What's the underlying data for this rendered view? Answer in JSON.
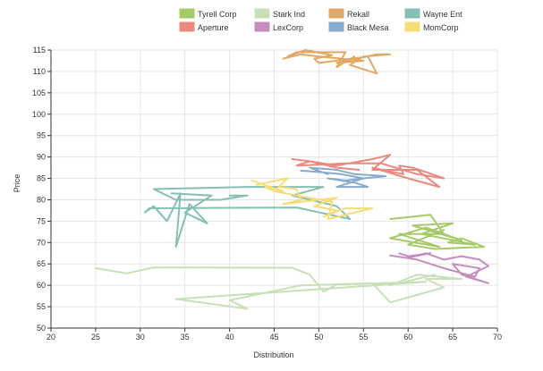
{
  "chart_data": {
    "type": "line",
    "title": "",
    "xlabel": "Distribution",
    "ylabel": "Price",
    "xlim": [
      20,
      70
    ],
    "ylim": [
      50,
      115
    ],
    "xticks": [
      20,
      25,
      30,
      35,
      40,
      45,
      50,
      55,
      60,
      65,
      70
    ],
    "yticks": [
      50,
      55,
      60,
      65,
      70,
      75,
      80,
      85,
      90,
      95,
      100,
      105,
      110,
      115
    ],
    "grid": true,
    "legend_position": "top",
    "series": [
      {
        "name": "Tyrell Corp",
        "color": "#a6c96a",
        "points": [
          [
            58,
            75.5
          ],
          [
            62.5,
            76.5
          ],
          [
            64,
            72
          ],
          [
            59,
            72
          ],
          [
            63.5,
            69
          ],
          [
            58,
            71
          ],
          [
            62,
            73.5
          ],
          [
            66,
            70.5
          ],
          [
            60.5,
            74
          ],
          [
            65,
            74.5
          ],
          [
            61.5,
            72
          ],
          [
            67.5,
            69.5
          ],
          [
            64.5,
            70
          ],
          [
            66,
            71
          ],
          [
            68.5,
            69
          ],
          [
            63,
            68.5
          ],
          [
            60,
            69.5
          ],
          [
            64,
            73
          ]
        ]
      },
      {
        "name": "Stark Ind",
        "color": "#c7e0b8",
        "points": [
          [
            25,
            64
          ],
          [
            28.5,
            62.8
          ],
          [
            31.5,
            64.2
          ],
          [
            47,
            64.1
          ],
          [
            49,
            62.5
          ],
          [
            50.5,
            58.5
          ],
          [
            52,
            60.2
          ],
          [
            62,
            60.8
          ],
          [
            34,
            56.8
          ],
          [
            42,
            54.5
          ],
          [
            40,
            56.5
          ],
          [
            48,
            60
          ],
          [
            56,
            60.5
          ],
          [
            58,
            56
          ],
          [
            64,
            59.5
          ],
          [
            62,
            61.5
          ],
          [
            66,
            61.5
          ],
          [
            61,
            62.5
          ],
          [
            58,
            60
          ],
          [
            63,
            62.5
          ]
        ]
      },
      {
        "name": "Rekall",
        "color": "#e0a866",
        "points": [
          [
            46,
            113
          ],
          [
            48,
            114
          ],
          [
            50,
            113.5
          ],
          [
            55,
            112.5
          ],
          [
            52,
            112
          ],
          [
            56.5,
            114
          ],
          [
            58,
            114
          ],
          [
            55,
            113.5
          ],
          [
            53.5,
            111.5
          ],
          [
            56.5,
            109.5
          ],
          [
            55.5,
            113.5
          ],
          [
            50,
            112
          ],
          [
            49.5,
            113
          ],
          [
            51.5,
            113.8
          ],
          [
            48.5,
            115
          ],
          [
            46.5,
            113.5
          ],
          [
            47.5,
            114.5
          ],
          [
            53,
            114.5
          ],
          [
            52,
            111
          ],
          [
            54,
            113.5
          ]
        ]
      },
      {
        "name": "Wayne Ent",
        "color": "#86bfb4",
        "points": [
          [
            33.5,
            81.5
          ],
          [
            38,
            81
          ],
          [
            35,
            77
          ],
          [
            37.5,
            74.5
          ],
          [
            35.5,
            79
          ],
          [
            34,
            69
          ],
          [
            34.5,
            81.5
          ],
          [
            33,
            75
          ],
          [
            31.5,
            78.5
          ],
          [
            30.5,
            77
          ],
          [
            31,
            78
          ],
          [
            47.5,
            78.2
          ],
          [
            53.5,
            75.5
          ],
          [
            52,
            78.5
          ],
          [
            47,
            81
          ],
          [
            50.5,
            83
          ],
          [
            42,
            83
          ],
          [
            31.5,
            82.5
          ],
          [
            34,
            80
          ],
          [
            39,
            80
          ],
          [
            42,
            81
          ],
          [
            40,
            81
          ]
        ]
      },
      {
        "name": "Aperture",
        "color": "#e88a80",
        "points": [
          [
            47,
            89.5
          ],
          [
            49,
            89
          ],
          [
            52,
            88
          ],
          [
            56,
            89.5
          ],
          [
            58,
            90.5
          ],
          [
            56,
            87
          ],
          [
            61,
            87
          ],
          [
            63.5,
            83
          ],
          [
            60,
            85
          ],
          [
            56,
            87.5
          ],
          [
            59.5,
            86
          ],
          [
            59,
            88
          ],
          [
            60.5,
            87.5
          ],
          [
            62,
            86.5
          ],
          [
            64,
            85
          ],
          [
            61,
            86
          ],
          [
            57,
            88.5
          ],
          [
            53,
            88.5
          ],
          [
            47.5,
            88
          ],
          [
            49,
            89
          ],
          [
            52,
            87.5
          ],
          [
            54.5,
            87
          ]
        ]
      },
      {
        "name": "LexCorp",
        "color": "#c48fbf",
        "points": [
          [
            59,
            67.5
          ],
          [
            60,
            66.8
          ],
          [
            62.5,
            67.5
          ],
          [
            60,
            66.5
          ],
          [
            62,
            67.5
          ],
          [
            64,
            66
          ],
          [
            66,
            66.8
          ],
          [
            68,
            66
          ],
          [
            69,
            64.5
          ],
          [
            66.5,
            62
          ],
          [
            69,
            60.5
          ],
          [
            66,
            62.5
          ],
          [
            65,
            65
          ],
          [
            68,
            64
          ],
          [
            67.5,
            62
          ],
          [
            64,
            64
          ],
          [
            61,
            66
          ],
          [
            58,
            67
          ]
        ]
      },
      {
        "name": "Black Mesa",
        "color": "#88aacc",
        "points": [
          [
            48,
            86.8
          ],
          [
            50,
            86.5
          ],
          [
            52.5,
            86
          ],
          [
            55,
            85
          ],
          [
            53,
            84.5
          ],
          [
            51,
            85
          ],
          [
            54,
            84
          ],
          [
            55.5,
            83
          ],
          [
            52,
            83
          ],
          [
            55,
            85
          ],
          [
            57.5,
            85.5
          ],
          [
            54,
            86
          ],
          [
            52,
            87
          ],
          [
            49,
            87.5
          ],
          [
            51,
            86
          ]
        ]
      },
      {
        "name": "MomCorp",
        "color": "#f5dd7a",
        "points": [
          [
            43,
            83.5
          ],
          [
            46.5,
            85
          ],
          [
            45.5,
            83
          ],
          [
            47.5,
            82.5
          ],
          [
            48,
            80
          ],
          [
            46,
            79
          ],
          [
            48,
            79.5
          ],
          [
            52,
            80.5
          ],
          [
            49.5,
            78.5
          ],
          [
            52,
            77.5
          ],
          [
            50.5,
            76
          ],
          [
            53,
            78
          ],
          [
            56,
            78
          ],
          [
            51,
            75.5
          ],
          [
            51.5,
            79.5
          ],
          [
            47.5,
            81
          ],
          [
            45,
            82
          ],
          [
            44,
            83
          ],
          [
            46,
            82
          ],
          [
            42.5,
            84.5
          ]
        ]
      }
    ]
  }
}
